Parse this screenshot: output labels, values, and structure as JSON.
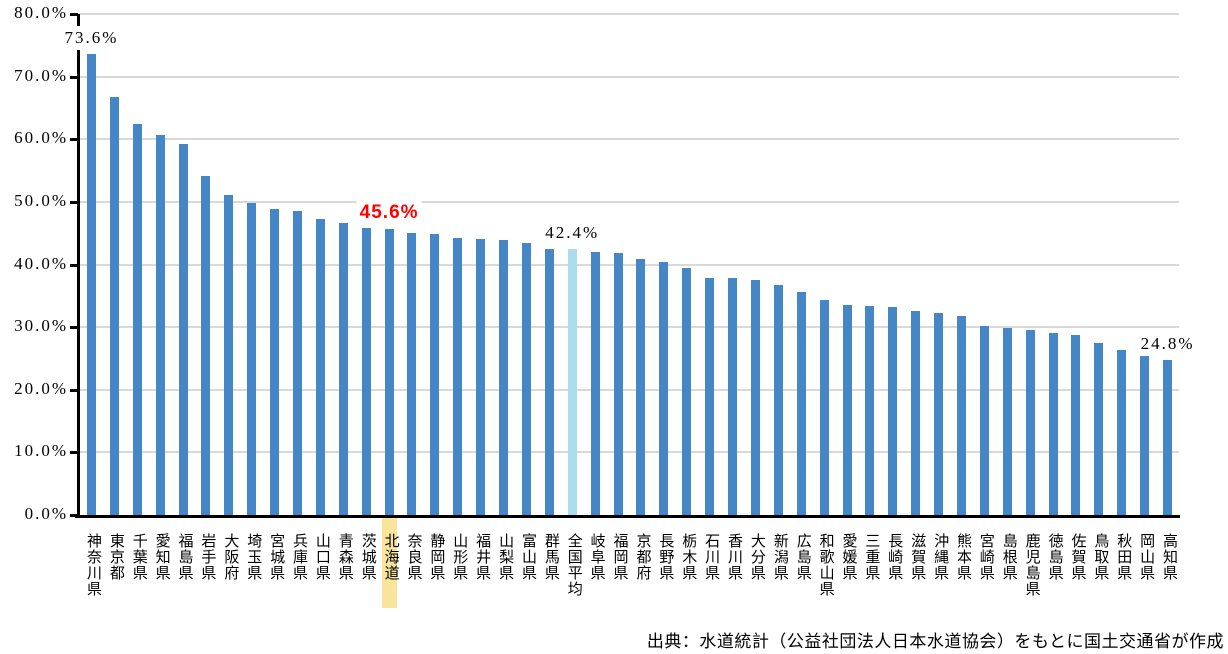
{
  "chart_data": {
    "type": "bar",
    "title": "",
    "xlabel": "",
    "ylabel": "",
    "ylim": [
      0,
      80
    ],
    "grid": true,
    "legend": "none",
    "y_ticks": [
      "0.0%",
      "10.0%",
      "20.0%",
      "30.0%",
      "40.0%",
      "50.0%",
      "60.0%",
      "70.0%",
      "80.0%"
    ],
    "categories": [
      "神奈川県",
      "東京都",
      "千葉県",
      "愛知県",
      "福島県",
      "岩手県",
      "大阪府",
      "埼玉県",
      "宮城県",
      "兵庫県",
      "山口県",
      "青森県",
      "茨城県",
      "北海道",
      "奈良県",
      "静岡県",
      "山形県",
      "福井県",
      "山梨県",
      "富山県",
      "群馬県",
      "全国平均",
      "岐阜県",
      "福岡県",
      "京都府",
      "長野県",
      "栃木県",
      "石川県",
      "香川県",
      "大分県",
      "新潟県",
      "広島県",
      "和歌山県",
      "愛媛県",
      "三重県",
      "長崎県",
      "滋賀県",
      "沖縄県",
      "熊本県",
      "宮崎県",
      "島根県",
      "鹿児島県",
      "徳島県",
      "佐賀県",
      "鳥取県",
      "秋田県",
      "岡山県",
      "高知県"
    ],
    "values": [
      73.6,
      66.8,
      62.4,
      60.6,
      59.3,
      54.2,
      51.1,
      49.8,
      48.9,
      48.5,
      47.3,
      46.6,
      45.9,
      45.6,
      45.1,
      44.9,
      44.3,
      44.1,
      43.9,
      43.5,
      42.5,
      42.4,
      42.0,
      41.9,
      40.9,
      40.4,
      39.5,
      37.9,
      37.8,
      37.6,
      36.8,
      35.6,
      34.4,
      33.5,
      33.3,
      33.2,
      32.6,
      32.3,
      31.8,
      30.2,
      29.9,
      29.5,
      29.1,
      28.7,
      27.4,
      26.3,
      25.5,
      24.8
    ],
    "bar_color": "#4486C6",
    "average_index": 21,
    "average_bar_color": "#ABDDEE",
    "highlight_index": 13,
    "highlight_color": "#F8E49A",
    "gridline_color": "#D9D9D9",
    "annotations": [
      {
        "text": "73.6%",
        "bar_index": 0,
        "color": "#000000",
        "bold": false
      },
      {
        "text": "45.6%",
        "bar_index": 13,
        "color": "#FF0000",
        "bold": true
      },
      {
        "text": "42.4%",
        "bar_index": 21,
        "color": "#000000",
        "bold": false
      },
      {
        "text": "24.8%",
        "bar_index": 47,
        "color": "#000000",
        "bold": false
      }
    ]
  },
  "source_note": "出典：水道統計（公益社団法人日本水道協会）をもとに国土交通省が作成"
}
